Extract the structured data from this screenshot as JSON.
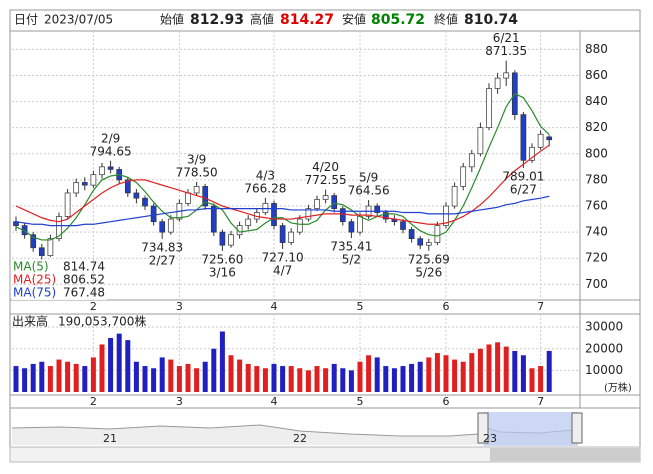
{
  "header": {
    "date_label": "日付",
    "date": "2023/07/05",
    "open_label": "始値",
    "open": 812.93,
    "high_label": "高値",
    "high": 814.27,
    "low_label": "安値",
    "low": 805.72,
    "close_label": "終値",
    "close": 810.74
  },
  "chart_data": [
    {
      "type": "candlestick",
      "categories": [
        null,
        null,
        null,
        null,
        null,
        null,
        null,
        null,
        null,
        "2",
        null,
        null,
        null,
        null,
        null,
        null,
        null,
        null,
        null,
        "3",
        null,
        null,
        null,
        null,
        null,
        null,
        null,
        null,
        null,
        null,
        "4",
        null,
        null,
        null,
        null,
        null,
        null,
        null,
        null,
        null,
        "5",
        null,
        null,
        null,
        null,
        null,
        null,
        null,
        null,
        null,
        "6",
        null,
        null,
        null,
        null,
        null,
        null,
        null,
        null,
        null,
        null,
        "7",
        null
      ],
      "ohlc": [
        [
          748,
          752,
          741,
          745
        ],
        [
          745,
          747,
          735,
          738
        ],
        [
          738,
          740,
          725,
          728
        ],
        [
          728,
          731,
          719,
          722
        ],
        [
          722,
          738,
          721,
          735
        ],
        [
          735,
          755,
          733,
          752
        ],
        [
          752,
          773,
          750,
          770
        ],
        [
          770,
          781,
          767,
          778
        ],
        [
          778,
          782,
          772,
          776
        ],
        [
          776,
          787,
          774,
          784
        ],
        [
          784,
          793,
          781,
          790
        ],
        [
          790,
          794.65,
          785,
          788
        ],
        [
          788,
          790,
          777,
          780
        ],
        [
          780,
          782,
          767,
          770
        ],
        [
          770,
          773,
          762,
          766
        ],
        [
          766,
          768,
          757,
          760
        ],
        [
          760,
          762,
          745,
          748
        ],
        [
          748,
          750,
          734.83,
          740
        ],
        [
          740,
          753,
          738,
          750
        ],
        [
          750,
          765,
          748,
          762
        ],
        [
          762,
          773,
          760,
          770
        ],
        [
          770,
          778.5,
          768,
          775
        ],
        [
          775,
          777,
          757,
          760
        ],
        [
          760,
          762,
          737,
          740
        ],
        [
          740,
          742,
          725.6,
          730
        ],
        [
          730,
          741,
          728,
          738
        ],
        [
          738,
          748,
          735,
          745
        ],
        [
          745,
          753,
          742,
          750
        ],
        [
          750,
          758,
          747,
          755
        ],
        [
          755,
          766.28,
          753,
          762
        ],
        [
          762,
          764,
          742,
          745
        ],
        [
          745,
          747,
          727.1,
          732
        ],
        [
          732,
          743,
          730,
          740
        ],
        [
          740,
          753,
          738,
          750
        ],
        [
          750,
          761,
          748,
          758
        ],
        [
          758,
          768,
          756,
          765
        ],
        [
          765,
          772.55,
          762,
          768
        ],
        [
          768,
          770,
          755,
          758
        ],
        [
          758,
          760,
          745,
          748
        ],
        [
          748,
          750,
          735.41,
          740
        ],
        [
          740,
          755,
          738,
          752
        ],
        [
          752,
          764.56,
          750,
          760
        ],
        [
          760,
          762,
          752,
          755
        ],
        [
          755,
          757,
          747,
          750
        ],
        [
          750,
          753,
          745,
          748
        ],
        [
          748,
          750,
          739,
          742
        ],
        [
          742,
          744,
          732,
          735
        ],
        [
          735,
          737,
          727,
          730
        ],
        [
          730,
          735,
          725.69,
          732
        ],
        [
          732,
          748,
          730,
          745
        ],
        [
          745,
          763,
          743,
          760
        ],
        [
          760,
          778,
          758,
          775
        ],
        [
          775,
          793,
          772,
          790
        ],
        [
          790,
          803,
          786,
          800
        ],
        [
          800,
          824,
          798,
          820
        ],
        [
          820,
          854,
          818,
          850
        ],
        [
          850,
          862,
          846,
          858
        ],
        [
          858,
          871.35,
          852,
          862
        ],
        [
          862,
          864,
          826,
          830
        ],
        [
          830,
          832,
          789.01,
          795
        ],
        [
          795,
          808,
          793,
          805
        ],
        [
          805,
          818,
          803,
          815
        ],
        [
          812.93,
          814.27,
          805.72,
          810.74
        ]
      ],
      "up_color": "#ffffff",
      "down_color": "#1f3fc8",
      "series": [
        {
          "name": "MA(5)",
          "color": "#2a8a2a",
          "values": [
            744,
            741,
            736,
            734,
            734,
            737,
            743,
            751,
            761,
            772,
            780,
            783,
            784,
            782,
            778,
            771,
            763,
            756,
            751,
            751,
            752,
            757,
            763,
            761,
            757,
            747,
            740,
            741,
            742,
            747,
            751,
            751,
            747,
            746,
            746,
            749,
            757,
            762,
            761,
            757,
            752,
            749,
            752,
            754,
            754,
            752,
            746,
            741,
            738,
            737,
            740,
            749,
            760,
            774,
            789,
            805,
            820,
            836,
            846,
            843,
            833,
            821,
            814.74
          ]
        },
        {
          "name": "MA(25)",
          "color": "#e02020",
          "values": [
            760,
            757,
            754,
            751,
            749,
            748,
            750,
            755,
            760,
            765,
            770,
            774,
            777,
            779,
            780,
            780,
            778,
            776,
            774,
            772,
            770,
            768,
            766,
            763,
            760,
            758,
            756,
            754,
            752,
            751,
            750,
            750,
            750,
            751,
            752,
            753,
            754,
            754,
            754,
            753,
            753,
            753,
            752,
            751,
            750,
            749,
            748,
            747,
            746,
            746,
            747,
            749,
            752,
            756,
            761,
            767,
            774,
            781,
            787,
            792,
            797,
            802,
            806.52
          ]
        },
        {
          "name": "MA(75)",
          "color": "#2040d0",
          "values": [
            748,
            747,
            746,
            746,
            745,
            745,
            745,
            745,
            746,
            746,
            747,
            748,
            749,
            750,
            751,
            752,
            753,
            754,
            755,
            756,
            757,
            757,
            758,
            758,
            758,
            758,
            758,
            758,
            758,
            758,
            758,
            758,
            757,
            757,
            757,
            757,
            757,
            756,
            756,
            756,
            756,
            756,
            756,
            756,
            756,
            755,
            755,
            755,
            754,
            754,
            754,
            754,
            755,
            756,
            757,
            758,
            759,
            761,
            762,
            764,
            765,
            766,
            767.48
          ]
        }
      ],
      "annotations": [
        {
          "label": "2/9",
          "value": 794.65,
          "at": "high"
        },
        {
          "label": "2/27",
          "value": 734.83,
          "at": "low"
        },
        {
          "label": "3/9",
          "value": 778.5,
          "value_label": "778.50",
          "at": "high"
        },
        {
          "label": "3/16",
          "value": 725.6,
          "value_label": "725.60",
          "at": "low"
        },
        {
          "label": "4/3",
          "value": 766.28,
          "at": "high"
        },
        {
          "label": "4/7",
          "value": 727.1,
          "value_label": "727.10",
          "at": "low"
        },
        {
          "label": "4/20",
          "value": 772.55,
          "at": "high"
        },
        {
          "label": "5/2",
          "value": 735.41,
          "at": "low"
        },
        {
          "label": "5/9",
          "value": 764.56,
          "at": "high"
        },
        {
          "label": "5/26",
          "value": 725.69,
          "at": "low"
        },
        {
          "label": "6/21",
          "value": 871.35,
          "at": "high"
        },
        {
          "label": "6/27",
          "value": 789.01,
          "at": "low"
        }
      ],
      "ylim": [
        688,
        891
      ],
      "yticks": [
        700,
        720,
        740,
        760,
        780,
        800,
        820,
        840,
        860,
        880
      ],
      "grid": true
    },
    {
      "type": "bar",
      "title": "出来高",
      "total": "190,053,700株",
      "unit": "(万株)",
      "categories": [
        null,
        null,
        null,
        null,
        null,
        null,
        null,
        null,
        null,
        "2",
        null,
        null,
        null,
        null,
        null,
        null,
        null,
        null,
        null,
        "3",
        null,
        null,
        null,
        null,
        null,
        null,
        null,
        null,
        null,
        null,
        "4",
        null,
        null,
        null,
        null,
        null,
        null,
        null,
        null,
        null,
        "5",
        null,
        null,
        null,
        null,
        null,
        null,
        null,
        null,
        null,
        "6",
        null,
        null,
        null,
        null,
        null,
        null,
        null,
        null,
        null,
        null,
        "7",
        null
      ],
      "values": [
        12000,
        11000,
        13000,
        14000,
        12000,
        15000,
        14000,
        13000,
        12000,
        16000,
        22000,
        25000,
        27000,
        24000,
        14000,
        12000,
        11000,
        16000,
        15000,
        12000,
        13000,
        11000,
        14000,
        20000,
        28000,
        17000,
        15000,
        13000,
        12000,
        11000,
        13000,
        12000,
        12000,
        11000,
        10000,
        12000,
        11000,
        13000,
        11000,
        10000,
        14000,
        17000,
        16000,
        12000,
        11000,
        12000,
        13000,
        14000,
        16000,
        18000,
        17000,
        15000,
        14000,
        18000,
        20000,
        22000,
        23000,
        21000,
        19000,
        17000,
        11000,
        12000,
        19005.37
      ],
      "up_color": "#e02020",
      "down_color": "#2020c0",
      "ylim": [
        0,
        34700
      ],
      "yticks": [
        10000,
        20000,
        30000
      ],
      "grid": true
    }
  ],
  "navigator": {
    "labels": [
      "21",
      "22",
      "23"
    ]
  }
}
